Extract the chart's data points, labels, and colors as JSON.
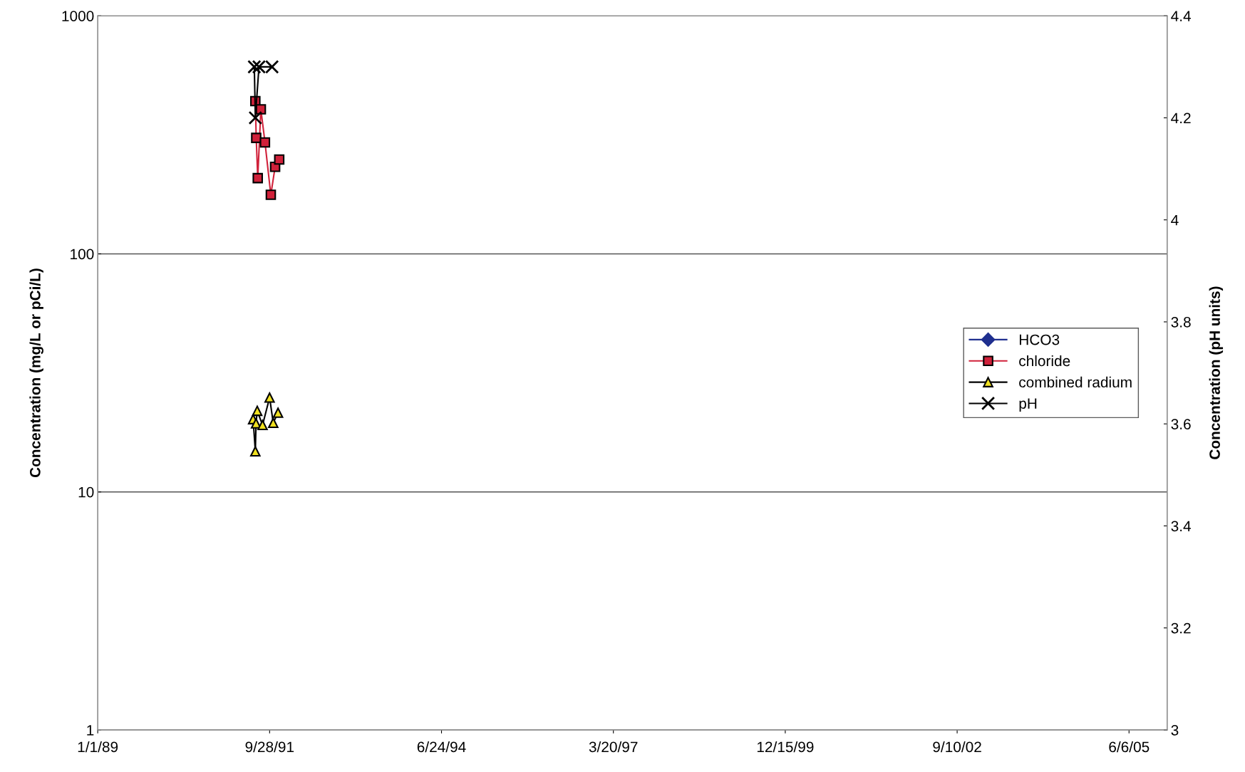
{
  "chart_data": {
    "type": "line",
    "ylabel": "Concentration (mg/L or pCi/L)",
    "y2label": "Concentration (pH units)",
    "log": "y",
    "grid": "y",
    "legend": "right",
    "xlim": [
      "1989-01-01",
      "2006-01-14"
    ],
    "xticks": [
      {
        "value": "1989-01-01",
        "label": "1/1/89"
      },
      {
        "value": "1991-09-28",
        "label": "9/28/91"
      },
      {
        "value": "1994-06-24",
        "label": "6/24/94"
      },
      {
        "value": "1997-03-20",
        "label": "3/20/97"
      },
      {
        "value": "1999-12-15",
        "label": "12/15/99"
      },
      {
        "value": "2002-09-10",
        "label": "9/10/02"
      },
      {
        "value": "2005-06-06",
        "label": "6/6/05"
      }
    ],
    "ylim": [
      1,
      1000
    ],
    "yticks": [
      1,
      10,
      100,
      1000
    ],
    "y2lim": [
      3,
      4.4
    ],
    "y2ticks": [
      {
        "value": 3,
        "label": "3"
      },
      {
        "value": 3.2,
        "label": "3.2"
      },
      {
        "value": 3.4,
        "label": "3.4"
      },
      {
        "value": 3.6,
        "label": "3.6"
      },
      {
        "value": 3.8,
        "label": "3.8"
      },
      {
        "value": 4,
        "label": "4"
      },
      {
        "value": 4.2,
        "label": "4.2"
      },
      {
        "value": 4.4,
        "label": "4.4"
      }
    ],
    "series": [
      {
        "name": "HCO3",
        "color": "#1f2f8f",
        "marker": "diamond"
      },
      {
        "name": "chloride",
        "color": "#d0213a",
        "marker": "square",
        "x": [
          "1991-07-07",
          "1991-07-12",
          "1991-07-21",
          "1991-08-08",
          "1991-09-01",
          "1991-10-05",
          "1991-10-30",
          "1991-11-23"
        ],
        "values": [
          438,
          307,
          208,
          405,
          294,
          177,
          232,
          249
        ]
      },
      {
        "name": "combined radium",
        "color": "#000000",
        "marker": "triangle",
        "x": [
          "1991-06-24",
          "1991-07-07",
          "1991-07-11",
          "1991-07-18",
          "1991-08-18",
          "1991-09-28",
          "1991-10-19",
          "1991-11-16"
        ],
        "values": [
          20.2,
          14.8,
          19.4,
          21.9,
          19.1,
          24.9,
          19.5,
          21.5
        ]
      },
      {
        "name": "pH",
        "color": "#000000",
        "marker": "cross",
        "axis": "y2",
        "x": [
          "1991-07-01",
          "1991-07-07",
          "1991-07-28",
          "1991-10-12"
        ],
        "values": [
          4.3,
          4.2,
          4.3,
          4.3
        ]
      }
    ]
  }
}
